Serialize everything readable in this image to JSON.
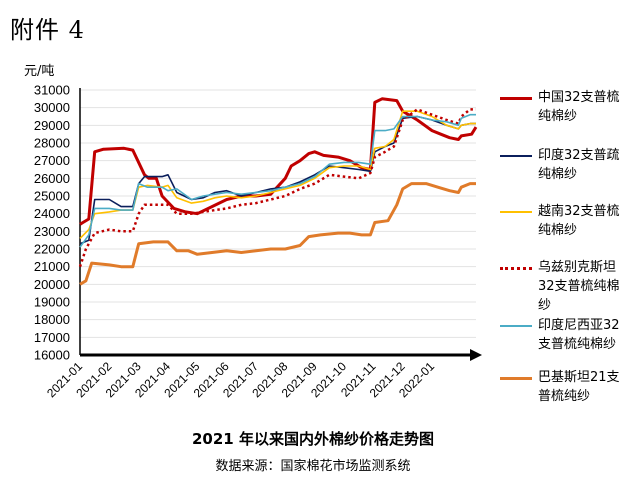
{
  "header": {
    "doc_label": "附件 4",
    "unit": "元/吨",
    "title": "2021 年以来国内外棉纱价格走势图",
    "source": "数据来源：国家棉花市场监测系统"
  },
  "chart_data": {
    "type": "line",
    "title": "2021 年以来国内外棉纱价格走势图",
    "ylabel": "元/吨",
    "ylim": [
      16000,
      31000
    ],
    "yticks": [
      "16000",
      "17000",
      "18000",
      "19000",
      "20000",
      "21000",
      "22000",
      "23000",
      "24000",
      "25000",
      "26000",
      "27000",
      "28000",
      "29000",
      "30000",
      "31000"
    ],
    "xticks": [
      "2021-01",
      "2021-02",
      "2021-03",
      "2021-04",
      "2021-05",
      "2021-06",
      "2021-07",
      "2021-08",
      "2021-09",
      "2021-10",
      "2021-11",
      "2021-12",
      "2022-01"
    ],
    "legend_position": "right",
    "series": [
      {
        "name": "中国32支普梳纯棉纱",
        "color": "#c00000",
        "style": "solid-thick",
        "points": [
          [
            0,
            23400
          ],
          [
            0.1,
            23500
          ],
          [
            0.3,
            23700
          ],
          [
            0.5,
            27500
          ],
          [
            0.8,
            27650
          ],
          [
            1.5,
            27700
          ],
          [
            1.8,
            27600
          ],
          [
            2.2,
            26200
          ],
          [
            2.35,
            26000
          ],
          [
            2.6,
            26000
          ],
          [
            2.8,
            25000
          ],
          [
            3.2,
            24300
          ],
          [
            3.6,
            24100
          ],
          [
            4.0,
            24000
          ],
          [
            4.5,
            24400
          ],
          [
            5.0,
            24800
          ],
          [
            5.5,
            25000
          ],
          [
            6.0,
            25000
          ],
          [
            6.5,
            25100
          ],
          [
            7.0,
            26000
          ],
          [
            7.2,
            26700
          ],
          [
            7.5,
            27000
          ],
          [
            7.8,
            27400
          ],
          [
            8.0,
            27500
          ],
          [
            8.3,
            27300
          ],
          [
            8.8,
            27200
          ],
          [
            9.2,
            27000
          ],
          [
            9.6,
            26600
          ],
          [
            9.9,
            26500
          ],
          [
            10.05,
            30300
          ],
          [
            10.3,
            30500
          ],
          [
            10.8,
            30400
          ],
          [
            11.0,
            29800
          ],
          [
            11.5,
            29300
          ],
          [
            12.0,
            28700
          ],
          [
            12.3,
            28500
          ],
          [
            12.6,
            28300
          ],
          [
            12.9,
            28200
          ],
          [
            13.0,
            28400
          ],
          [
            13.35,
            28500
          ],
          [
            13.5,
            28900
          ]
        ]
      },
      {
        "name": "印度32支普疏纯棉纱",
        "color": "#0b1f5c",
        "style": "solid",
        "points": [
          [
            0,
            22300
          ],
          [
            0.3,
            22500
          ],
          [
            0.5,
            24800
          ],
          [
            1.0,
            24800
          ],
          [
            1.4,
            24400
          ],
          [
            1.8,
            24400
          ],
          [
            2.0,
            25700
          ],
          [
            2.2,
            26100
          ],
          [
            2.8,
            26100
          ],
          [
            3.0,
            26200
          ],
          [
            3.3,
            25200
          ],
          [
            3.8,
            24800
          ],
          [
            4.2,
            24900
          ],
          [
            4.6,
            25200
          ],
          [
            5.0,
            25300
          ],
          [
            5.5,
            25000
          ],
          [
            6.0,
            25200
          ],
          [
            6.5,
            25400
          ],
          [
            7.0,
            25500
          ],
          [
            7.5,
            25800
          ],
          [
            8.0,
            26200
          ],
          [
            8.5,
            26700
          ],
          [
            9.0,
            26600
          ],
          [
            9.5,
            26500
          ],
          [
            9.9,
            26400
          ],
          [
            10.05,
            27500
          ],
          [
            10.4,
            27800
          ],
          [
            10.7,
            28000
          ],
          [
            11.0,
            29400
          ],
          [
            11.5,
            29500
          ],
          [
            12.0,
            29300
          ],
          [
            12.5,
            29000
          ],
          [
            12.9,
            28800
          ],
          [
            13.0,
            29000
          ],
          [
            13.3,
            29100
          ],
          [
            13.5,
            29100
          ]
        ]
      },
      {
        "name": "越南32支普梳纯棉纱",
        "color": "#ffc000",
        "style": "solid",
        "points": [
          [
            0,
            22600
          ],
          [
            0.3,
            23100
          ],
          [
            0.5,
            24000
          ],
          [
            1.0,
            24100
          ],
          [
            1.4,
            24200
          ],
          [
            1.8,
            24200
          ],
          [
            2.0,
            25500
          ],
          [
            2.3,
            25600
          ],
          [
            2.8,
            25500
          ],
          [
            3.0,
            25600
          ],
          [
            3.3,
            24900
          ],
          [
            3.8,
            24600
          ],
          [
            4.2,
            24700
          ],
          [
            4.6,
            24900
          ],
          [
            5.0,
            25000
          ],
          [
            5.5,
            24900
          ],
          [
            6.0,
            25000
          ],
          [
            6.5,
            25200
          ],
          [
            7.0,
            25400
          ],
          [
            7.5,
            25600
          ],
          [
            8.0,
            26000
          ],
          [
            8.5,
            26600
          ],
          [
            9.0,
            26700
          ],
          [
            9.5,
            26700
          ],
          [
            9.9,
            26500
          ],
          [
            10.05,
            27700
          ],
          [
            10.4,
            27800
          ],
          [
            10.7,
            28200
          ],
          [
            11.0,
            29800
          ],
          [
            11.5,
            29800
          ],
          [
            12.0,
            29500
          ],
          [
            12.5,
            29000
          ],
          [
            12.9,
            28800
          ],
          [
            13.0,
            29000
          ],
          [
            13.3,
            29100
          ],
          [
            13.5,
            29100
          ]
        ]
      },
      {
        "name": "乌兹别克斯坦32支普梳纯棉纱",
        "color": "#c00000",
        "style": "dotted",
        "points": [
          [
            0,
            21000
          ],
          [
            0.2,
            22000
          ],
          [
            0.5,
            22900
          ],
          [
            1.0,
            23100
          ],
          [
            1.4,
            23000
          ],
          [
            1.8,
            23000
          ],
          [
            2.0,
            24000
          ],
          [
            2.2,
            24500
          ],
          [
            2.8,
            24500
          ],
          [
            3.0,
            24500
          ],
          [
            3.3,
            24000
          ],
          [
            3.8,
            24000
          ],
          [
            4.2,
            24100
          ],
          [
            4.6,
            24200
          ],
          [
            5.0,
            24300
          ],
          [
            5.5,
            24500
          ],
          [
            6.0,
            24600
          ],
          [
            6.5,
            24800
          ],
          [
            7.0,
            25000
          ],
          [
            7.5,
            25400
          ],
          [
            8.0,
            25700
          ],
          [
            8.5,
            26200
          ],
          [
            9.0,
            26100
          ],
          [
            9.5,
            26000
          ],
          [
            9.9,
            26300
          ],
          [
            10.05,
            27200
          ],
          [
            10.4,
            27500
          ],
          [
            10.7,
            27800
          ],
          [
            11.0,
            29300
          ],
          [
            11.5,
            29900
          ],
          [
            12.0,
            29600
          ],
          [
            12.5,
            29300
          ],
          [
            12.9,
            29100
          ],
          [
            13.0,
            29500
          ],
          [
            13.3,
            29900
          ],
          [
            13.5,
            29900
          ]
        ]
      },
      {
        "name": "印度尼西亚32支普梳纯棉纱",
        "color": "#4bacc6",
        "style": "solid",
        "points": [
          [
            0,
            22100
          ],
          [
            0.3,
            22800
          ],
          [
            0.5,
            24300
          ],
          [
            1.0,
            24300
          ],
          [
            1.4,
            24200
          ],
          [
            1.8,
            24200
          ],
          [
            2.0,
            25700
          ],
          [
            2.3,
            25500
          ],
          [
            2.8,
            25500
          ],
          [
            3.0,
            25300
          ],
          [
            3.3,
            25400
          ],
          [
            3.8,
            24800
          ],
          [
            4.2,
            25000
          ],
          [
            4.6,
            25100
          ],
          [
            5.0,
            25200
          ],
          [
            5.5,
            25100
          ],
          [
            6.0,
            25200
          ],
          [
            6.5,
            25300
          ],
          [
            7.0,
            25500
          ],
          [
            7.5,
            25700
          ],
          [
            8.0,
            26100
          ],
          [
            8.5,
            26800
          ],
          [
            9.0,
            26900
          ],
          [
            9.5,
            26900
          ],
          [
            9.9,
            26800
          ],
          [
            10.05,
            28700
          ],
          [
            10.4,
            28700
          ],
          [
            10.7,
            28800
          ],
          [
            11.0,
            29500
          ],
          [
            11.5,
            29500
          ],
          [
            12.0,
            29300
          ],
          [
            12.5,
            29200
          ],
          [
            12.9,
            29000
          ],
          [
            13.0,
            29400
          ],
          [
            13.3,
            29600
          ],
          [
            13.5,
            29600
          ]
        ]
      },
      {
        "name": "巴基斯坦21支普梳纯纱",
        "color": "#e07b2a",
        "style": "solid-thick",
        "points": [
          [
            0,
            20000
          ],
          [
            0.2,
            20200
          ],
          [
            0.4,
            21200
          ],
          [
            1.0,
            21100
          ],
          [
            1.4,
            21000
          ],
          [
            1.8,
            21000
          ],
          [
            2.0,
            22300
          ],
          [
            2.5,
            22400
          ],
          [
            3.0,
            22400
          ],
          [
            3.3,
            21900
          ],
          [
            3.7,
            21900
          ],
          [
            4.0,
            21700
          ],
          [
            4.5,
            21800
          ],
          [
            5.0,
            21900
          ],
          [
            5.5,
            21800
          ],
          [
            6.0,
            21900
          ],
          [
            6.5,
            22000
          ],
          [
            7.0,
            22000
          ],
          [
            7.5,
            22200
          ],
          [
            7.8,
            22700
          ],
          [
            8.2,
            22800
          ],
          [
            8.8,
            22900
          ],
          [
            9.2,
            22900
          ],
          [
            9.6,
            22800
          ],
          [
            9.9,
            22800
          ],
          [
            10.05,
            23500
          ],
          [
            10.5,
            23600
          ],
          [
            10.8,
            24500
          ],
          [
            11.0,
            25400
          ],
          [
            11.3,
            25700
          ],
          [
            11.8,
            25700
          ],
          [
            12.2,
            25500
          ],
          [
            12.6,
            25300
          ],
          [
            12.9,
            25200
          ],
          [
            13.0,
            25500
          ],
          [
            13.3,
            25700
          ],
          [
            13.5,
            25700
          ]
        ]
      }
    ]
  }
}
